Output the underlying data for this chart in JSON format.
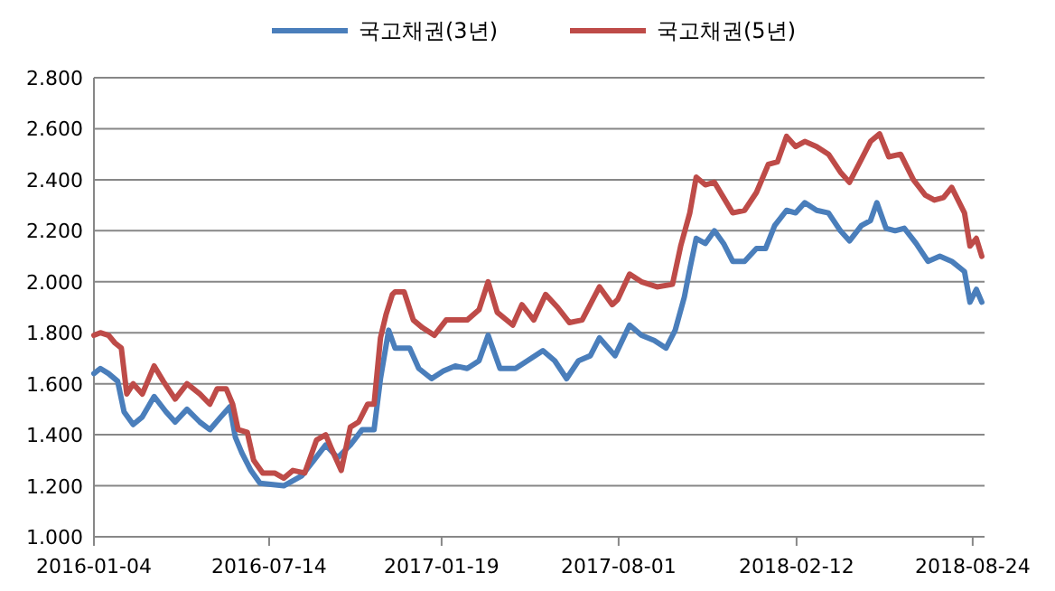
{
  "chart_data": {
    "type": "line",
    "legend": "top",
    "grid": "y",
    "marker": "none",
    "line_style": "solid",
    "xlim": [
      "2016-01-04",
      "2018-09-06"
    ],
    "xticks": [
      "2016-01-04",
      "2016-07-14",
      "2017-01-19",
      "2017-08-01",
      "2018-02-12",
      "2018-08-24"
    ],
    "ylim": [
      1.0,
      2.8
    ],
    "yticks": [
      {
        "value": 1.0,
        "label": "1.000"
      },
      {
        "value": 1.2,
        "label": "1.200"
      },
      {
        "value": 1.4,
        "label": "1.400"
      },
      {
        "value": 1.6,
        "label": "1.600"
      },
      {
        "value": 1.8,
        "label": "1.800"
      },
      {
        "value": 2.0,
        "label": "2.000"
      },
      {
        "value": 2.2,
        "label": "2.200"
      },
      {
        "value": 2.4,
        "label": "2.400"
      },
      {
        "value": 2.6,
        "label": "2.600"
      },
      {
        "value": 2.8,
        "label": "2.800"
      }
    ],
    "series": [
      {
        "name": "국고채권(3년)",
        "color": "#4a7ebb",
        "x": [
          "2016-01-04",
          "2016-01-11",
          "2016-01-20",
          "2016-01-30",
          "2016-02-06",
          "2016-02-16",
          "2016-02-26",
          "2016-03-10",
          "2016-03-23",
          "2016-04-02",
          "2016-04-15",
          "2016-04-29",
          "2016-05-10",
          "2016-05-22",
          "2016-06-01",
          "2016-06-07",
          "2016-06-14",
          "2016-06-24",
          "2016-07-04",
          "2016-07-30",
          "2016-08-19",
          "2016-09-01",
          "2016-09-14",
          "2016-09-27",
          "2016-10-11",
          "2016-10-24",
          "2016-11-06",
          "2016-11-13",
          "2016-11-22",
          "2016-11-29",
          "2016-12-05",
          "2016-12-15",
          "2016-12-25",
          "2017-01-08",
          "2017-01-21",
          "2017-02-03",
          "2017-02-16",
          "2017-03-01",
          "2017-03-11",
          "2017-03-24",
          "2017-04-10",
          "2017-04-23",
          "2017-05-10",
          "2017-05-23",
          "2017-06-05",
          "2017-06-18",
          "2017-07-01",
          "2017-07-11",
          "2017-07-28",
          "2017-08-13",
          "2017-08-26",
          "2017-09-09",
          "2017-09-22",
          "2017-10-02",
          "2017-10-12",
          "2017-10-18",
          "2017-10-25",
          "2017-11-04",
          "2017-11-14",
          "2017-11-24",
          "2017-12-04",
          "2017-12-17",
          "2017-12-30",
          "2018-01-09",
          "2018-01-19",
          "2018-02-01",
          "2018-02-11",
          "2018-02-21",
          "2018-03-06",
          "2018-03-19",
          "2018-04-01",
          "2018-04-11",
          "2018-04-24",
          "2018-05-04",
          "2018-05-11",
          "2018-05-21",
          "2018-05-31",
          "2018-06-10",
          "2018-06-23",
          "2018-07-06",
          "2018-07-19",
          "2018-08-01",
          "2018-08-15",
          "2018-08-21",
          "2018-08-28",
          "2018-09-03"
        ],
        "values": [
          1.64,
          1.66,
          1.64,
          1.61,
          1.49,
          1.44,
          1.47,
          1.55,
          1.49,
          1.45,
          1.5,
          1.45,
          1.42,
          1.47,
          1.51,
          1.39,
          1.33,
          1.26,
          1.21,
          1.2,
          1.24,
          1.3,
          1.36,
          1.31,
          1.36,
          1.42,
          1.42,
          1.62,
          1.81,
          1.74,
          1.74,
          1.74,
          1.66,
          1.62,
          1.65,
          1.67,
          1.66,
          1.69,
          1.79,
          1.66,
          1.66,
          1.69,
          1.73,
          1.69,
          1.62,
          1.69,
          1.71,
          1.78,
          1.71,
          1.83,
          1.79,
          1.77,
          1.74,
          1.81,
          1.94,
          2.05,
          2.17,
          2.15,
          2.2,
          2.15,
          2.08,
          2.08,
          2.13,
          2.13,
          2.22,
          2.28,
          2.27,
          2.31,
          2.28,
          2.27,
          2.2,
          2.16,
          2.22,
          2.24,
          2.31,
          2.21,
          2.2,
          2.21,
          2.15,
          2.08,
          2.1,
          2.08,
          2.04,
          1.92,
          1.97,
          1.92
        ]
      },
      {
        "name": "국고채권(5년)",
        "color": "#be4b48",
        "x": [
          "2016-01-04",
          "2016-01-11",
          "2016-01-20",
          "2016-01-27",
          "2016-02-03",
          "2016-02-09",
          "2016-02-16",
          "2016-02-26",
          "2016-03-10",
          "2016-03-20",
          "2016-04-02",
          "2016-04-15",
          "2016-04-29",
          "2016-05-10",
          "2016-05-18",
          "2016-05-28",
          "2016-06-04",
          "2016-06-10",
          "2016-06-20",
          "2016-06-27",
          "2016-07-07",
          "2016-07-20",
          "2016-07-30",
          "2016-08-09",
          "2016-08-22",
          "2016-09-04",
          "2016-09-14",
          "2016-09-21",
          "2016-10-01",
          "2016-10-11",
          "2016-10-20",
          "2016-10-30",
          "2016-11-06",
          "2016-11-13",
          "2016-11-19",
          "2016-11-26",
          "2016-11-29",
          "2016-12-09",
          "2016-12-19",
          "2016-12-29",
          "2017-01-11",
          "2017-01-24",
          "2017-02-06",
          "2017-02-16",
          "2017-03-01",
          "2017-03-11",
          "2017-03-21",
          "2017-04-07",
          "2017-04-17",
          "2017-04-30",
          "2017-05-13",
          "2017-05-26",
          "2017-06-08",
          "2017-06-22",
          "2017-07-11",
          "2017-07-25",
          "2017-07-31",
          "2017-08-13",
          "2017-08-26",
          "2017-09-12",
          "2017-09-29",
          "2017-10-08",
          "2017-10-18",
          "2017-10-25",
          "2017-11-04",
          "2017-11-14",
          "2017-11-24",
          "2017-12-04",
          "2017-12-17",
          "2017-12-30",
          "2018-01-12",
          "2018-01-22",
          "2018-02-01",
          "2018-02-11",
          "2018-02-21",
          "2018-03-06",
          "2018-03-19",
          "2018-04-01",
          "2018-04-11",
          "2018-04-24",
          "2018-05-04",
          "2018-05-14",
          "2018-05-24",
          "2018-06-06",
          "2018-06-20",
          "2018-07-03",
          "2018-07-13",
          "2018-07-23",
          "2018-08-01",
          "2018-08-15",
          "2018-08-21",
          "2018-08-28",
          "2018-09-03"
        ],
        "values": [
          1.79,
          1.8,
          1.79,
          1.76,
          1.74,
          1.56,
          1.6,
          1.56,
          1.67,
          1.61,
          1.54,
          1.6,
          1.56,
          1.52,
          1.58,
          1.58,
          1.52,
          1.42,
          1.41,
          1.3,
          1.25,
          1.25,
          1.23,
          1.26,
          1.25,
          1.38,
          1.4,
          1.34,
          1.26,
          1.43,
          1.45,
          1.52,
          1.52,
          1.78,
          1.87,
          1.95,
          1.96,
          1.96,
          1.85,
          1.82,
          1.79,
          1.85,
          1.85,
          1.85,
          1.89,
          2.0,
          1.88,
          1.83,
          1.91,
          1.85,
          1.95,
          1.9,
          1.84,
          1.85,
          1.98,
          1.91,
          1.93,
          2.03,
          2.0,
          1.98,
          1.99,
          2.14,
          2.27,
          2.41,
          2.38,
          2.39,
          2.33,
          2.27,
          2.28,
          2.35,
          2.46,
          2.47,
          2.57,
          2.53,
          2.55,
          2.53,
          2.5,
          2.43,
          2.39,
          2.48,
          2.55,
          2.58,
          2.49,
          2.5,
          2.4,
          2.34,
          2.32,
          2.33,
          2.37,
          2.27,
          2.14,
          2.17,
          2.1
        ]
      }
    ]
  }
}
